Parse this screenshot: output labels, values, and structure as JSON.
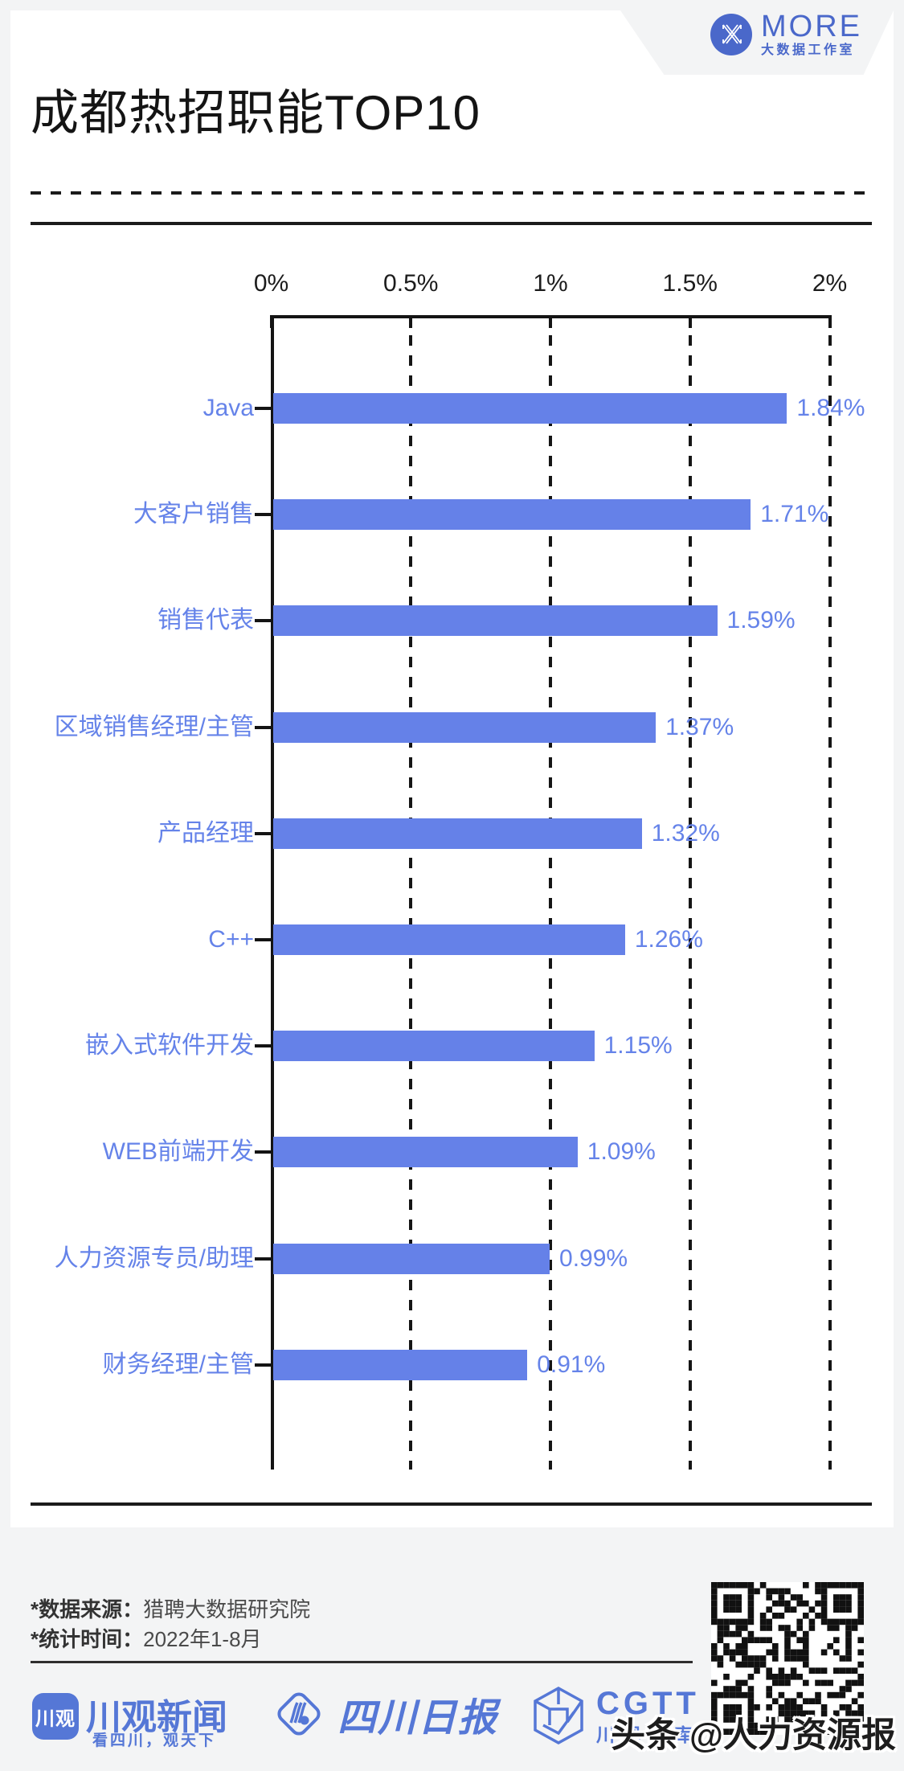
{
  "header": {
    "brand": "MORE",
    "brand_sub": "大数据工作室"
  },
  "title": "成都热招职能TOP10",
  "chart_data": {
    "type": "bar",
    "orientation": "horizontal",
    "title": "成都热招职能TOP10",
    "categories": [
      "Java",
      "大客户销售",
      "销售代表",
      "区域销售经理/主管",
      "产品经理",
      "C++",
      "嵌入式软件开发",
      "WEB前端开发",
      "人力资源专员/助理",
      "财务经理/主管"
    ],
    "values": [
      1.84,
      1.71,
      1.59,
      1.37,
      1.32,
      1.26,
      1.15,
      1.09,
      0.99,
      0.91
    ],
    "value_labels": [
      "1.84%",
      "1.71%",
      "1.59%",
      "1.37%",
      "1.32%",
      "1.26%",
      "1.15%",
      "1.09%",
      "0.99%",
      "0.91%"
    ],
    "x_ticks": [
      "0%",
      "0.5%",
      "1%",
      "1.5%",
      "2%"
    ],
    "xlim": [
      0,
      2
    ],
    "grid": "dashed-vertical-gridlines",
    "legend": "none",
    "bar_color": "#6581e8",
    "label_color": "#6583e9"
  },
  "notes": {
    "source_label": "*数据来源：",
    "source_value": "猎聘大数据研究院",
    "period_label": "*统计时间：",
    "period_value": "2022年1-8月"
  },
  "footer": {
    "chuanguan_badge": "川观",
    "chuanguan_name": "川观新闻",
    "chuanguan_tagline": "看四川，观天下",
    "scrb_name": "四川日报",
    "cgtt_name": "CGTT",
    "cgtt_sub": "川观智库",
    "watermark": "头条 @人力资源报"
  },
  "colors": {
    "accent_blue": "#6581e8",
    "footer_blue": "#5577d6",
    "brand_blue": "#4a68ca",
    "ink": "#1b1b1b",
    "background": "#f3f4f5",
    "card": "#ffffff"
  }
}
